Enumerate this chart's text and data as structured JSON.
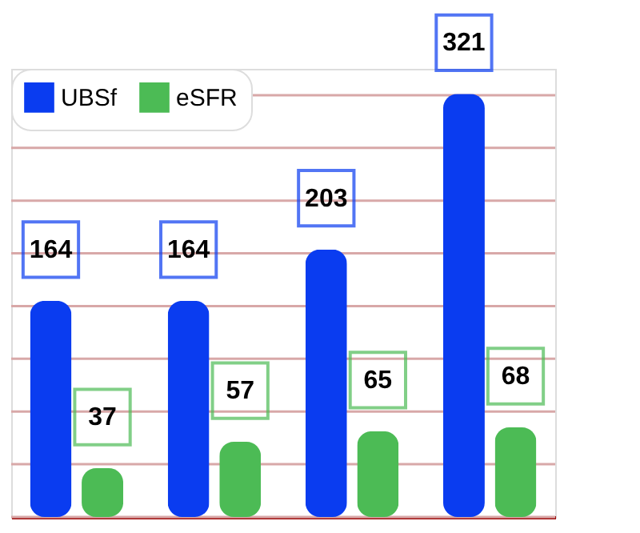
{
  "chart_data": {
    "type": "bar",
    "categories": [
      null,
      null,
      null,
      null
    ],
    "series": [
      {
        "name": "UBSf",
        "color": "#0a3cf0",
        "values": [
          164,
          164,
          203,
          321
        ]
      },
      {
        "name": "eSFR",
        "color": "#4cbb55",
        "values": [
          37,
          57,
          65,
          68
        ]
      }
    ],
    "ylim": [
      0,
      340
    ],
    "yticks": [
      {
        "value": 0,
        "label": null
      },
      {
        "value": 40,
        "label": null
      },
      {
        "value": 80,
        "label": null
      },
      {
        "value": 120,
        "label": null
      },
      {
        "value": 160,
        "label": null
      },
      {
        "value": 200,
        "label": null
      },
      {
        "value": 240,
        "label": null
      },
      {
        "value": 280,
        "label": null
      },
      {
        "value": 320,
        "label": null
      }
    ],
    "grid": "y",
    "legend": "top left",
    "data_labels": true
  }
}
